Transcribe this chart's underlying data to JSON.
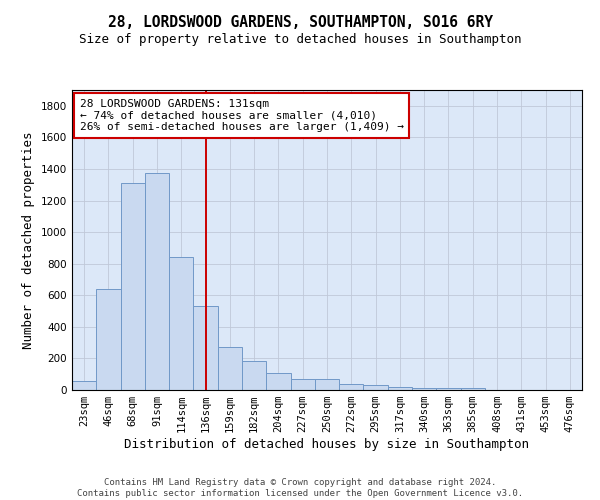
{
  "title": "28, LORDSWOOD GARDENS, SOUTHAMPTON, SO16 6RY",
  "subtitle": "Size of property relative to detached houses in Southampton",
  "xlabel": "Distribution of detached houses by size in Southampton",
  "ylabel": "Number of detached properties",
  "footer_line1": "Contains HM Land Registry data © Crown copyright and database right 2024.",
  "footer_line2": "Contains public sector information licensed under the Open Government Licence v3.0.",
  "categories": [
    "23sqm",
    "46sqm",
    "68sqm",
    "91sqm",
    "114sqm",
    "136sqm",
    "159sqm",
    "182sqm",
    "204sqm",
    "227sqm",
    "250sqm",
    "272sqm",
    "295sqm",
    "317sqm",
    "340sqm",
    "363sqm",
    "385sqm",
    "408sqm",
    "431sqm",
    "453sqm",
    "476sqm"
  ],
  "values": [
    55,
    640,
    1310,
    1375,
    845,
    530,
    275,
    185,
    105,
    68,
    68,
    35,
    32,
    20,
    15,
    12,
    12,
    0,
    0,
    0,
    0
  ],
  "bar_color": "#c9d9f0",
  "bar_edge_color": "#7098c8",
  "vline_x": 5.0,
  "vline_color": "#cc0000",
  "annotation_line1": "28 LORDSWOOD GARDENS: 131sqm",
  "annotation_line2": "← 74% of detached houses are smaller (4,010)",
  "annotation_line3": "26% of semi-detached houses are larger (1,409) →",
  "annotation_box_color": "#cc0000",
  "ylim": [
    0,
    1900
  ],
  "yticks": [
    0,
    200,
    400,
    600,
    800,
    1000,
    1200,
    1400,
    1600,
    1800
  ],
  "grid_color": "#c0c8d8",
  "bg_color": "#dce8f8",
  "title_fontsize": 10.5,
  "subtitle_fontsize": 9,
  "xlabel_fontsize": 9,
  "ylabel_fontsize": 9,
  "tick_fontsize": 7.5,
  "annotation_fontsize": 8,
  "footer_fontsize": 6.5
}
